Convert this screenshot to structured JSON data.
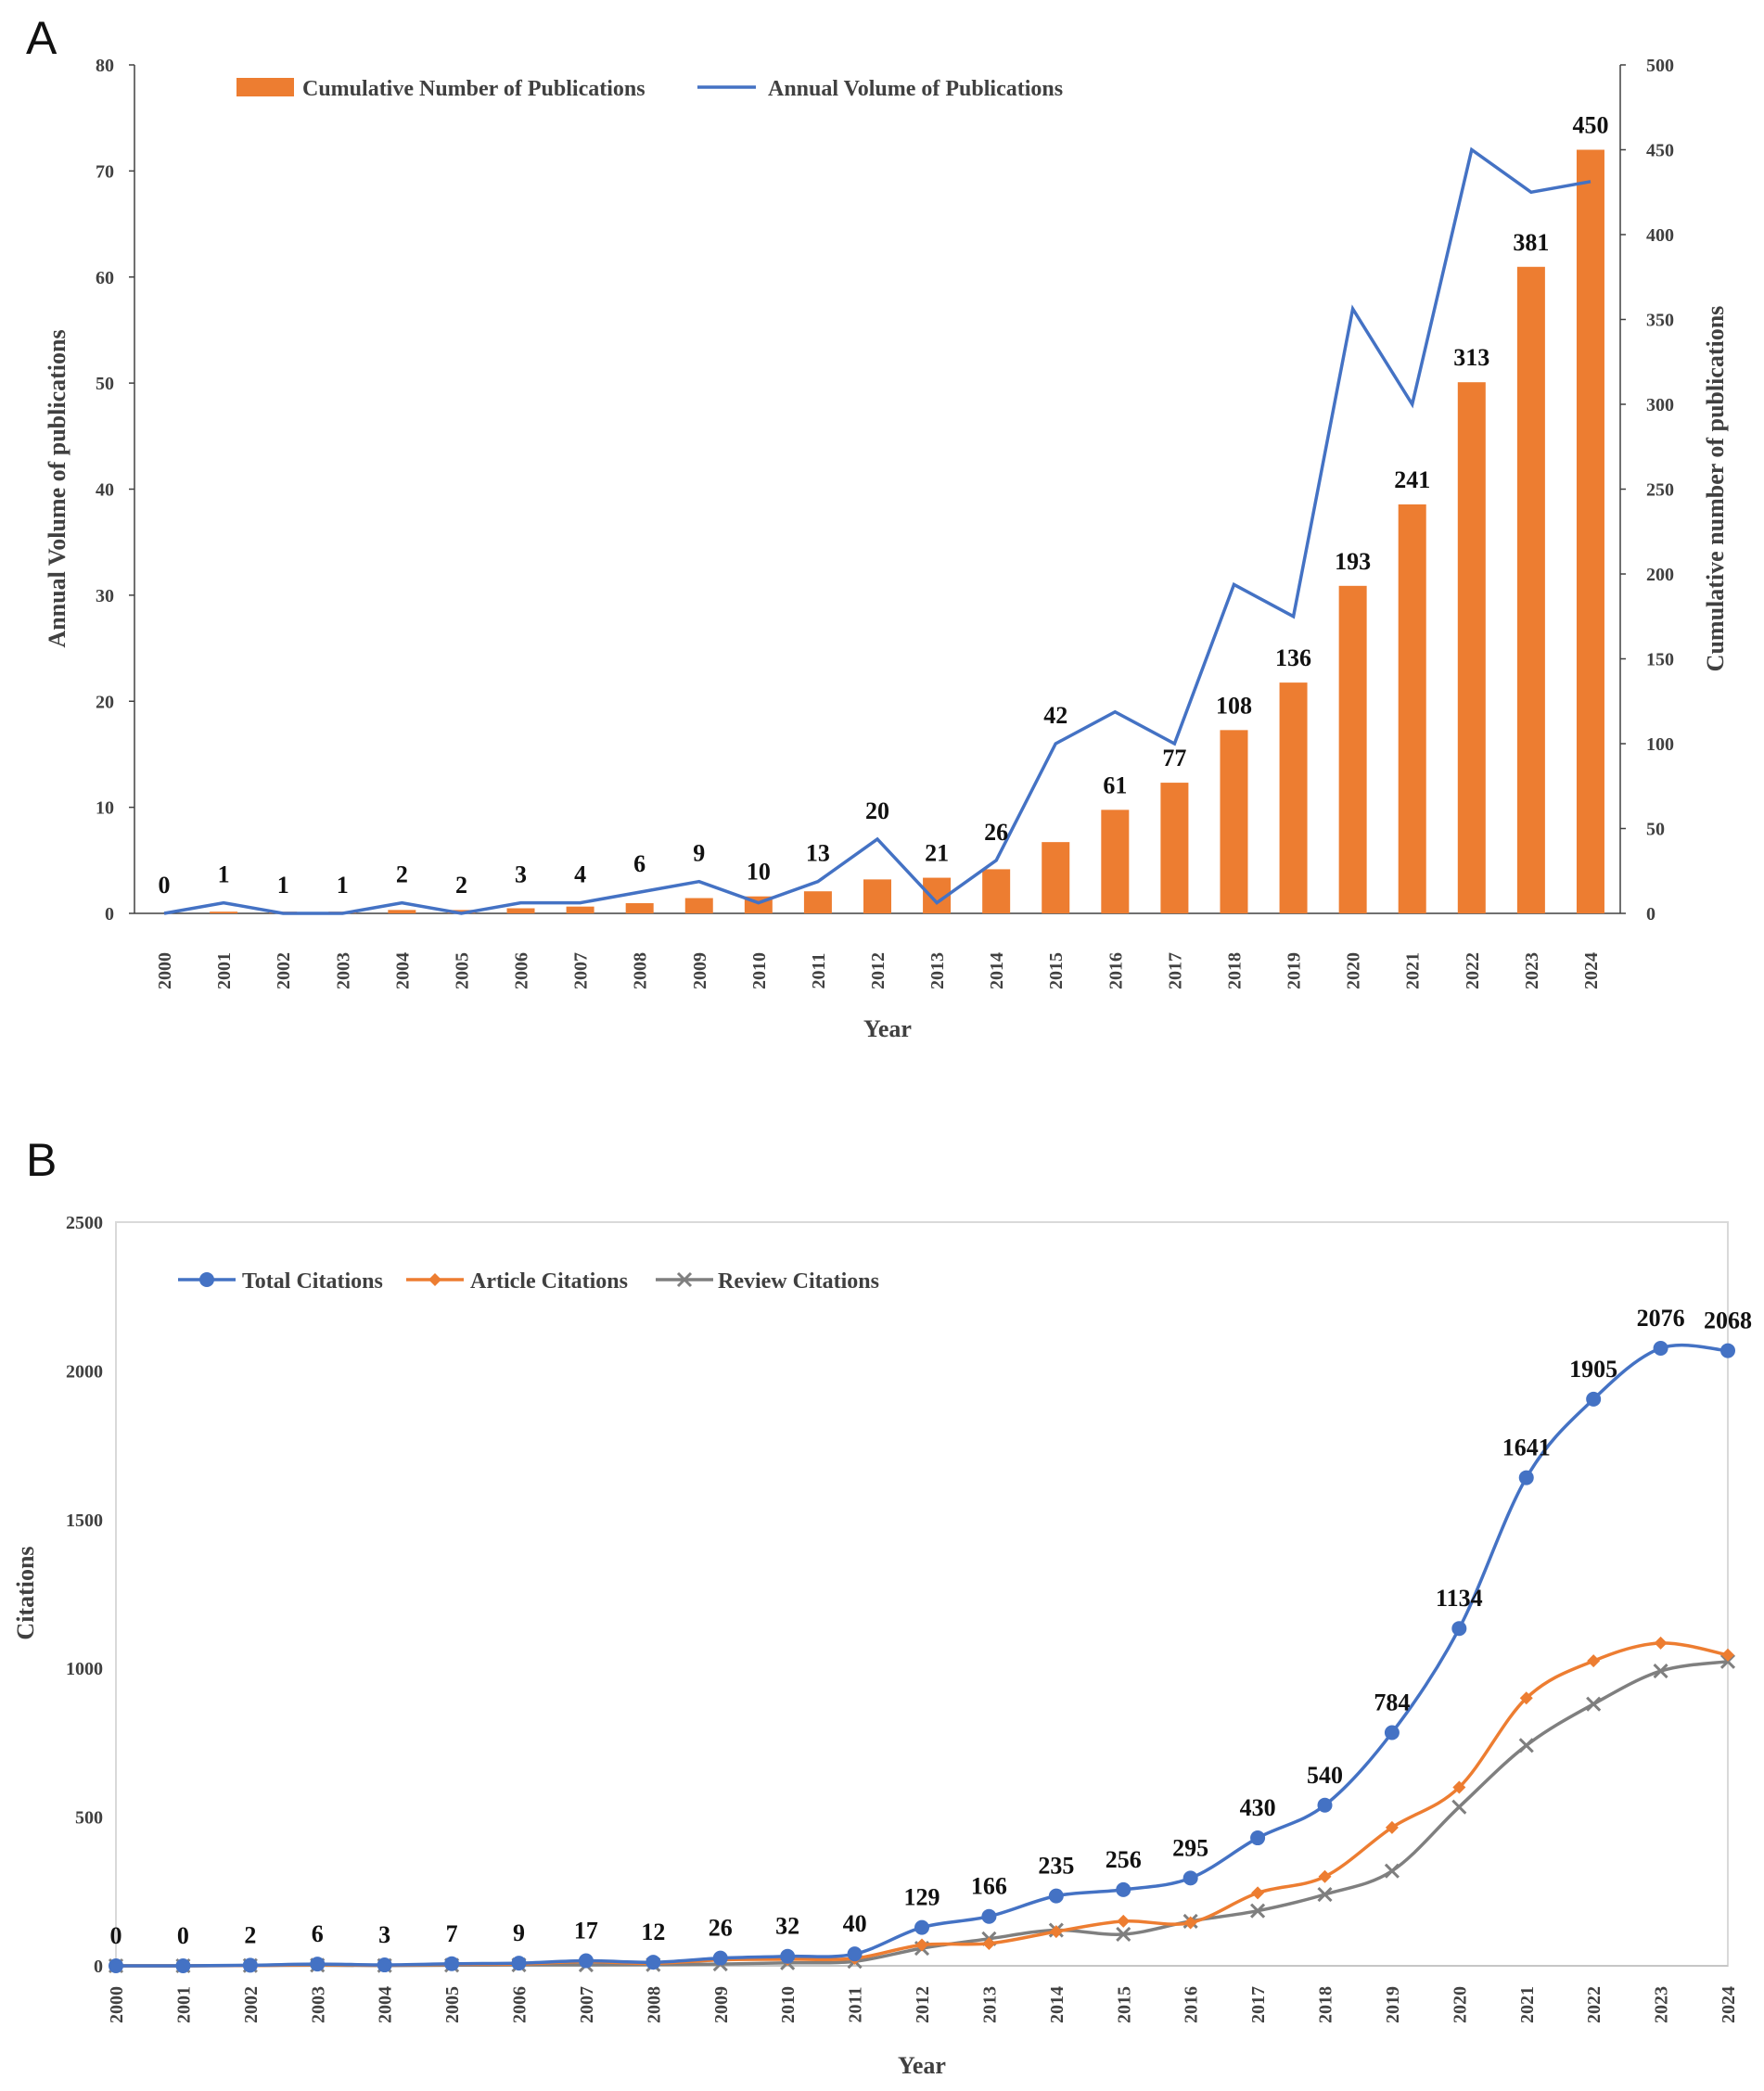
{
  "panels": {
    "a": "A",
    "b": "B"
  },
  "colors": {
    "orange": "#ED7D31",
    "blue": "#4472C4",
    "gray": "#7F7F7F",
    "axis": "#404040",
    "frame": "#D9D9D9"
  },
  "chart_data": [
    {
      "type": "bar",
      "panel": "A",
      "title": "",
      "xlabel": "Year",
      "ylabel": "Annual Volume of publications",
      "y2label": "Cumulative number of publications",
      "ylim": [
        0,
        80
      ],
      "y2lim": [
        0,
        500
      ],
      "yticks": [
        "0",
        "10",
        "20",
        "30",
        "40",
        "50",
        "60",
        "70",
        "80"
      ],
      "y2ticks": [
        "0",
        "50",
        "100",
        "150",
        "200",
        "250",
        "300",
        "350",
        "400",
        "450",
        "500"
      ],
      "legend_position": "top-left",
      "categories": [
        "2000",
        "2001",
        "2002",
        "2003",
        "2004",
        "2005",
        "2006",
        "2007",
        "2008",
        "2009",
        "2010",
        "2011",
        "2012",
        "2013",
        "2014",
        "2015",
        "2016",
        "2017",
        "2018",
        "2019",
        "2020",
        "2021",
        "2022",
        "2023",
        "2024"
      ],
      "series": [
        {
          "name": "Cumulative Number of Publications",
          "type": "bar",
          "axis": "right",
          "values": [
            0,
            1,
            1,
            1,
            2,
            2,
            3,
            4,
            6,
            9,
            10,
            13,
            20,
            21,
            26,
            42,
            61,
            77,
            108,
            136,
            193,
            241,
            313,
            381,
            450
          ]
        },
        {
          "name": "Annual Volume of Publications",
          "type": "line",
          "axis": "left",
          "values": [
            0,
            1,
            0,
            0,
            1,
            0,
            1,
            1,
            2,
            3,
            1,
            3,
            7,
            1,
            5,
            16,
            19,
            16,
            31,
            28,
            57,
            48,
            72,
            68,
            69
          ]
        }
      ],
      "data_labels": [
        "0",
        "1",
        "1",
        "1",
        "2",
        "2",
        "3",
        "4",
        "6",
        "9",
        "10",
        "13",
        "20",
        "21",
        "26",
        "42",
        "61",
        "77",
        "108",
        "136",
        "193",
        "241",
        "313",
        "381",
        "450"
      ]
    },
    {
      "type": "line",
      "panel": "B",
      "title": "",
      "xlabel": "Year",
      "ylabel": "Citations",
      "ylim": [
        0,
        2500
      ],
      "yticks": [
        "0",
        "500",
        "1000",
        "1500",
        "2000",
        "2500"
      ],
      "legend_position": "top-left",
      "categories": [
        "2000",
        "2001",
        "2002",
        "2003",
        "2004",
        "2005",
        "2006",
        "2007",
        "2008",
        "2009",
        "2010",
        "2011",
        "2012",
        "2013",
        "2014",
        "2015",
        "2016",
        "2017",
        "2018",
        "2019",
        "2020",
        "2021",
        "2022",
        "2023",
        "2024"
      ],
      "series": [
        {
          "name": "Total Citations",
          "marker": "circle",
          "values": [
            0,
            0,
            2,
            6,
            3,
            7,
            9,
            17,
            12,
            26,
            32,
            40,
            129,
            166,
            235,
            256,
            295,
            430,
            540,
            784,
            1134,
            1641,
            1905,
            2076,
            2068
          ]
        },
        {
          "name": "Article Citations",
          "marker": "diamond",
          "values": [
            0,
            0,
            1,
            4,
            2,
            5,
            6,
            14,
            8,
            20,
            22,
            25,
            70,
            75,
            115,
            150,
            145,
            245,
            300,
            465,
            600,
            900,
            1025,
            1085,
            1045
          ]
        },
        {
          "name": "Review Citations",
          "marker": "x",
          "values": [
            0,
            0,
            1,
            2,
            1,
            2,
            3,
            3,
            4,
            6,
            10,
            15,
            59,
            91,
            120,
            106,
            150,
            185,
            240,
            319,
            534,
            741,
            880,
            991,
            1023
          ]
        }
      ],
      "data_labels": [
        "0",
        "0",
        "2",
        "6",
        "3",
        "7",
        "9",
        "17",
        "12",
        "26",
        "32",
        "40",
        "129",
        "166",
        "235",
        "256",
        "295",
        "430",
        "540",
        "784",
        "1134",
        "1641",
        "1905",
        "2076",
        "2068"
      ]
    }
  ]
}
